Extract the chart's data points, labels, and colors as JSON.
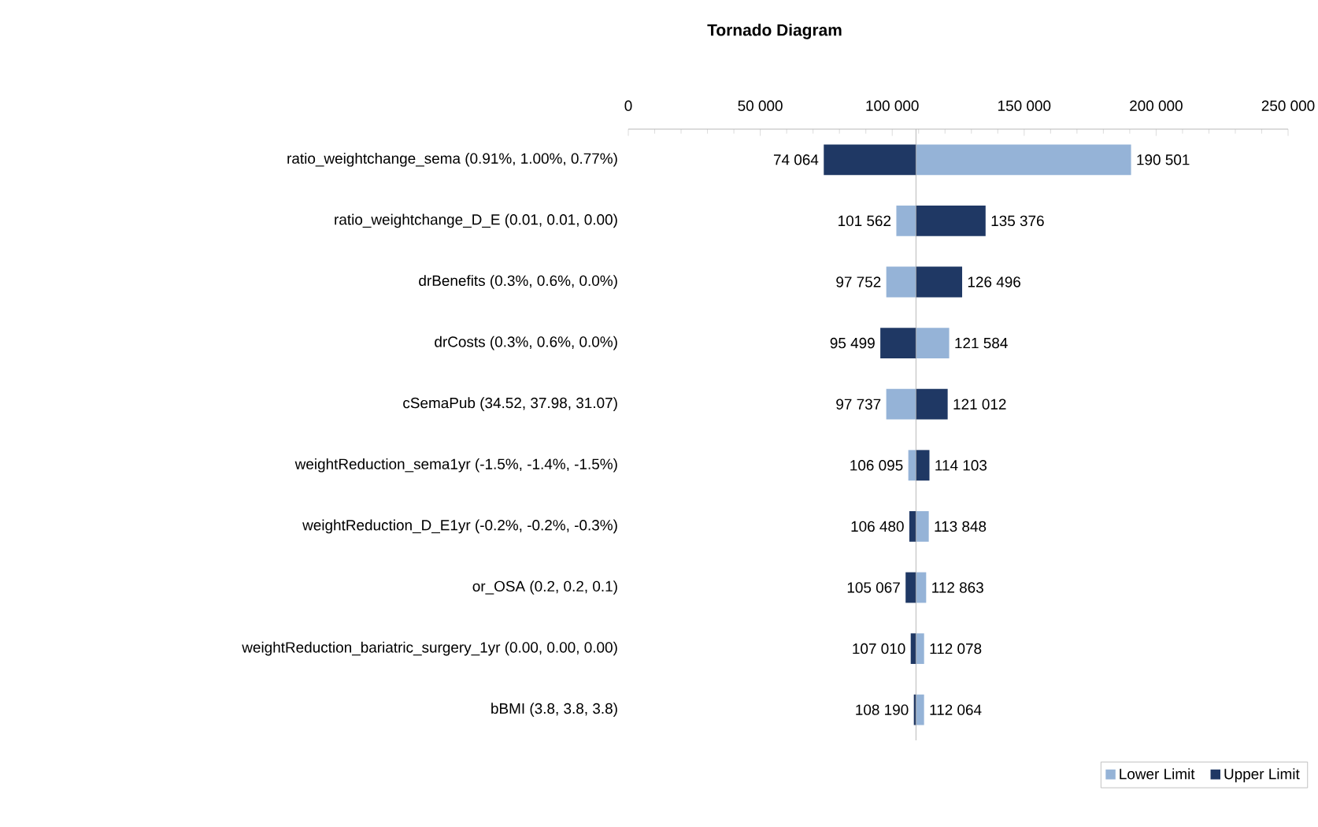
{
  "chart_data": {
    "type": "bar",
    "orientation": "horizontal",
    "title": "Tornado Diagram",
    "categories": [
      "ratio_weightchange_sema (0.91%, 1.00%, 0.77%)",
      "ratio_weightchange_D_E (0.01, 0.01, 0.00)",
      "drBenefits (0.3%, 0.6%, 0.0%)",
      "drCosts (0.3%, 0.6%, 0.0%)",
      "cSemaPub (34.52, 37.98, 31.07)",
      "weightReduction_sema1yr (-1.5%, -1.4%, -1.5%)",
      "weightReduction_D_E1yr (-0.2%, -0.2%, -0.3%)",
      "or_OSA (0.2, 0.2, 0.1)",
      "weightReduction_bariatric_surgery_1yr (0.00, 0.00, 0.00)",
      "bBMI (3.8, 3.8, 3.8)"
    ],
    "series": [
      {
        "name": "Lower Limit",
        "color": "#95b3d7",
        "base": [
          109000,
          109000,
          109000,
          109000,
          109000,
          109000,
          109000,
          109000,
          109000,
          109000
        ],
        "values": [
          81501,
          -7438,
          -11248,
          12584,
          -11263,
          -2905,
          4848,
          3863,
          3078,
          3064
        ],
        "value_labels": [
          "190 501",
          "101 562",
          "97 752",
          "121 584",
          "97 737",
          "106 095",
          "113 848",
          "112 863",
          "112 078",
          "112 064"
        ]
      },
      {
        "name": "Upper Limit",
        "color": "#1f3864",
        "base": [
          109000,
          109000,
          109000,
          109000,
          109000,
          109000,
          109000,
          109000,
          109000,
          109000
        ],
        "values": [
          -34936,
          26376,
          17496,
          -13501,
          12012,
          5103,
          -2520,
          -3933,
          -1990,
          -810
        ],
        "value_labels": [
          "74 064",
          "135 376",
          "126 496",
          "95 499",
          "121 012",
          "114 103",
          "106 480",
          "105 067",
          "107 010",
          "108 190"
        ]
      }
    ],
    "xlim": [
      0,
      250000
    ],
    "xticks": [
      0,
      {
        "value": 50000,
        "label": "50 000"
      },
      {
        "value": 100000,
        "label": "100 000"
      },
      {
        "value": 150000,
        "label": "150 000"
      },
      {
        "value": 200000,
        "label": "200 000"
      },
      {
        "value": 250000,
        "label": "250 000"
      }
    ],
    "ref_lines": [
      {
        "axis": "x",
        "value": 109000,
        "color": "#a6a6a6"
      }
    ],
    "legend": "bottom right"
  }
}
